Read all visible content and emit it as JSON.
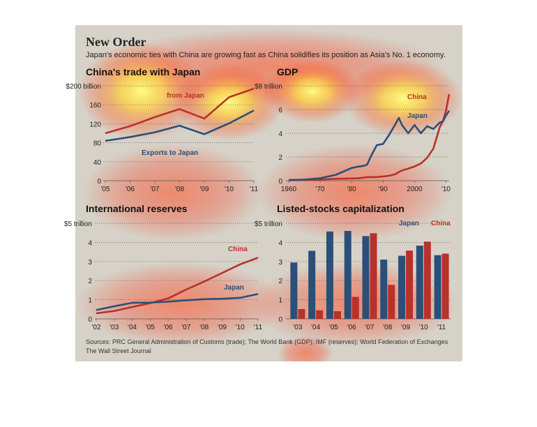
{
  "header": {
    "title": "New Order",
    "subtitle": "Japan's economic ties with China are growing fast as China solidifies its position as Asia's No. 1 economy."
  },
  "footer": {
    "sources": "Sources: PRC General Administration of Customs (trade); The World Bank (GDP); IMF (reserves); World Federation of Exchanges",
    "credit": "The Wall Street Journal"
  },
  "colors": {
    "china": "#b8312a",
    "japan": "#2a4f78",
    "background": "#d6d2c8"
  },
  "chart_data": [
    {
      "id": "trade",
      "type": "line",
      "title": "China's trade with Japan",
      "xlabel": "",
      "ylabel": "",
      "x": [
        2005,
        2006,
        2007,
        2008,
        2009,
        2010,
        2011
      ],
      "xticks": [
        "'05",
        "'06",
        "'07",
        "'08",
        "'09",
        "'10",
        "'11"
      ],
      "ylim": [
        0,
        200
      ],
      "yticks": [
        "0",
        "40",
        "80",
        "120",
        "160",
        "$200 billion"
      ],
      "series": [
        {
          "name": "Imports from Japan",
          "color": "#b8312a",
          "values": [
            100,
            115,
            134,
            151,
            131,
            176,
            194
          ]
        },
        {
          "name": "Exports to Japan",
          "color": "#2a4f78",
          "values": [
            84,
            92,
            102,
            116,
            98,
            121,
            148
          ]
        }
      ],
      "labels": [
        "from Japan",
        "Exports to Japan"
      ]
    },
    {
      "id": "gdp",
      "type": "line",
      "title": "GDP",
      "xlabel": "",
      "ylabel": "",
      "x": [
        1960,
        1965,
        1970,
        1975,
        1980,
        1982,
        1984,
        1985,
        1986,
        1988,
        1990,
        1992,
        1994,
        1995,
        1996,
        1998,
        2000,
        2002,
        2004,
        2006,
        2008,
        2009,
        2010,
        2011
      ],
      "xticks": [
        "1960",
        "'70",
        "'80",
        "'90",
        "2000",
        "'10"
      ],
      "xtick_values": [
        1960,
        1970,
        1980,
        1990,
        2000,
        2010
      ],
      "ylim": [
        0,
        8
      ],
      "yticks": [
        "0",
        "2",
        "4",
        "6",
        "$8 trillion"
      ],
      "series": [
        {
          "name": "China",
          "color": "#b8312a",
          "values": [
            0.06,
            0.07,
            0.09,
            0.16,
            0.19,
            0.2,
            0.26,
            0.31,
            0.3,
            0.31,
            0.36,
            0.42,
            0.56,
            0.73,
            0.86,
            1.02,
            1.2,
            1.45,
            1.93,
            2.71,
            4.5,
            5.0,
            5.9,
            7.3
          ]
        },
        {
          "name": "Japan",
          "color": "#2a4f78",
          "values": [
            0.04,
            0.09,
            0.21,
            0.5,
            1.07,
            1.18,
            1.26,
            1.38,
            2.0,
            3.0,
            3.1,
            3.9,
            4.8,
            5.3,
            4.7,
            4.0,
            4.7,
            4.0,
            4.6,
            4.36,
            4.9,
            5.0,
            5.5,
            5.9
          ]
        }
      ]
    },
    {
      "id": "reserves",
      "type": "line",
      "title": "International reserves",
      "xlabel": "",
      "ylabel": "",
      "x": [
        2002,
        2003,
        2004,
        2005,
        2006,
        2007,
        2008,
        2009,
        2010,
        2011
      ],
      "xticks": [
        "'02",
        "'03",
        "'04",
        "'05",
        "'06",
        "'07",
        "'08",
        "'09",
        "'10",
        "'11"
      ],
      "ylim": [
        0,
        5
      ],
      "yticks": [
        "0",
        "1",
        "2",
        "3",
        "4",
        "$5 trillion"
      ],
      "series": [
        {
          "name": "China",
          "color": "#b8312a",
          "values": [
            0.29,
            0.41,
            0.62,
            0.82,
            1.07,
            1.53,
            1.95,
            2.4,
            2.85,
            3.2
          ]
        },
        {
          "name": "Japan",
          "color": "#2a4f78",
          "values": [
            0.46,
            0.66,
            0.84,
            0.85,
            0.9,
            0.97,
            1.03,
            1.05,
            1.1,
            1.3
          ]
        }
      ]
    },
    {
      "id": "stocks",
      "type": "bar",
      "title": "Listed-stocks capitalization",
      "xlabel": "",
      "ylabel": "",
      "categories": [
        "'03",
        "'04",
        "'05",
        "'06",
        "'07",
        "'08",
        "'09",
        "'10",
        "'11"
      ],
      "ylim": [
        0,
        5
      ],
      "yticks": [
        "0",
        "1",
        "2",
        "3",
        "4",
        "$5 trillion"
      ],
      "series": [
        {
          "name": "Japan",
          "color": "#2a4f78",
          "values": [
            2.95,
            3.56,
            4.57,
            4.6,
            4.33,
            3.1,
            3.3,
            3.83,
            3.33
          ]
        },
        {
          "name": "China",
          "color": "#b8312a",
          "values": [
            0.51,
            0.45,
            0.4,
            1.15,
            4.48,
            1.78,
            3.57,
            4.04,
            3.41
          ]
        }
      ]
    }
  ]
}
